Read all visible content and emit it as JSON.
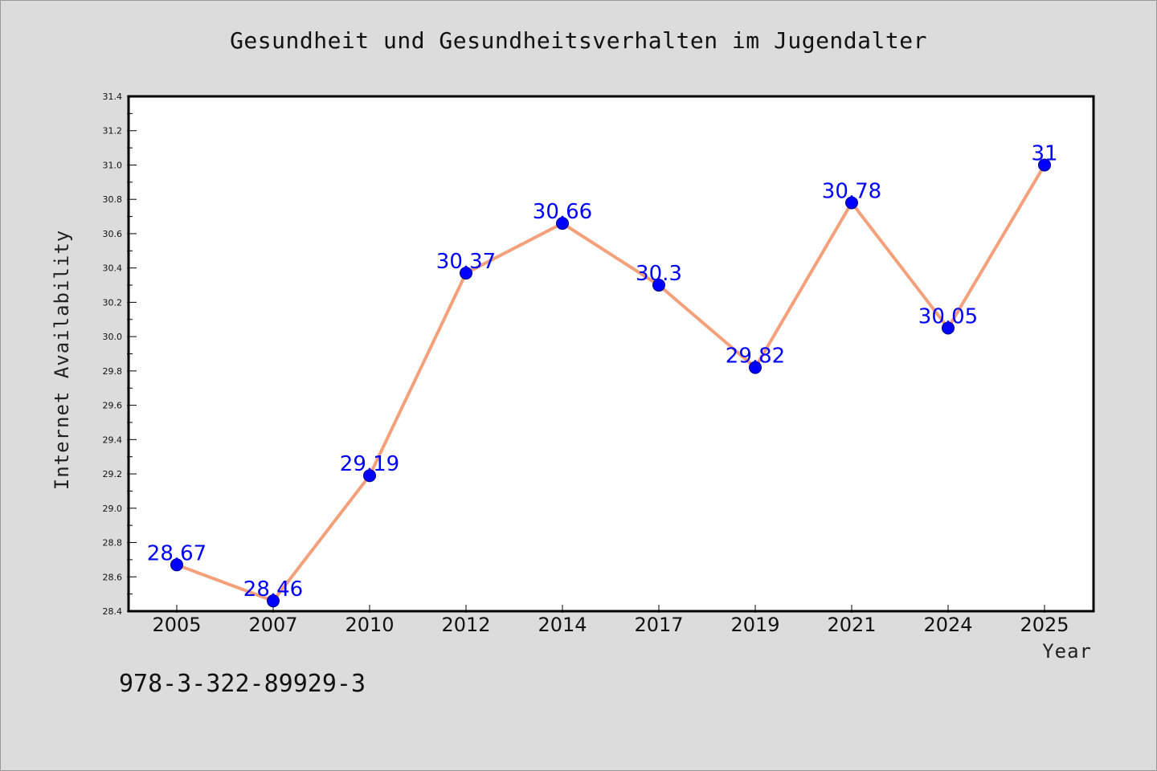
{
  "chart_data": {
    "type": "line",
    "title": "Gesundheit und Gesundheitsverhalten im Jugendalter",
    "xlabel": "Year",
    "ylabel": "Internet Availability",
    "categories": [
      "2005",
      "2007",
      "2010",
      "2012",
      "2014",
      "2017",
      "2019",
      "2021",
      "2024",
      "2025"
    ],
    "series": [
      {
        "values": [
          28.67,
          28.46,
          29.19,
          30.37,
          30.66,
          30.3,
          29.82,
          30.78,
          30.05,
          31
        ]
      }
    ],
    "data_labels": [
      "28.67",
      "28.46",
      "29.19",
      "30.37",
      "30.66",
      "30.3",
      "29.82",
      "30.78",
      "30.05",
      "31"
    ],
    "ylim": [
      28.4,
      31.4
    ],
    "yticks": [
      "28.4",
      "28.6",
      "28.8",
      "29.0",
      "29.2",
      "29.4",
      "29.6",
      "29.8",
      "30.0",
      "30.2",
      "30.4",
      "30.6",
      "30.8",
      "31.0",
      "31.2",
      "31.4"
    ],
    "grid": false,
    "legend": "none",
    "colors": {
      "line": "#f4a07a",
      "marker": "#0000ff",
      "data_label": "#0000ff",
      "plot_background": "#ffffff",
      "figure_background": "#dcdcdc"
    }
  },
  "footer": {
    "isbn": "978-3-322-89929-3"
  }
}
